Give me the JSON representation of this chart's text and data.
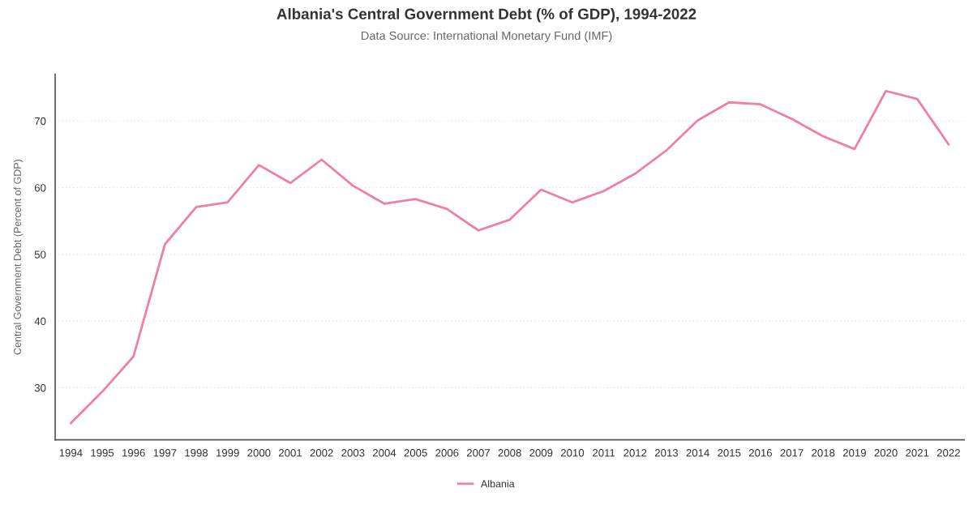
{
  "chart_data": {
    "type": "line",
    "title": "Albania's Central Government Debt (% of GDP), 1994-2022",
    "subtitle": "Data Source: International Monetary Fund (IMF)",
    "ylabel": "Central Government Debt (Percent of GDP)",
    "categories": [
      "1994",
      "1995",
      "1996",
      "1997",
      "1998",
      "1999",
      "2000",
      "2001",
      "2002",
      "2003",
      "2004",
      "2005",
      "2006",
      "2007",
      "2008",
      "2009",
      "2010",
      "2011",
      "2012",
      "2013",
      "2014",
      "2015",
      "2016",
      "2017",
      "2018",
      "2019",
      "2020",
      "2021",
      "2022"
    ],
    "series": [
      {
        "name": "Albania",
        "color": "#ee7fa6",
        "values": [
          24.7,
          29.4,
          34.7,
          51.5,
          57.1,
          57.8,
          63.4,
          60.7,
          64.2,
          60.3,
          57.6,
          58.3,
          56.8,
          53.6,
          55.2,
          59.7,
          57.8,
          59.5,
          62.1,
          65.6,
          70.1,
          72.8,
          72.5,
          70.3,
          67.7,
          65.8,
          74.5,
          73.3,
          66.5
        ]
      }
    ],
    "ylim": [
      22.2,
      77
    ],
    "yticks": [
      30,
      40,
      50,
      60,
      70
    ],
    "grid": "y",
    "legend": "bottom",
    "marker": "none",
    "line_style": "solid"
  }
}
